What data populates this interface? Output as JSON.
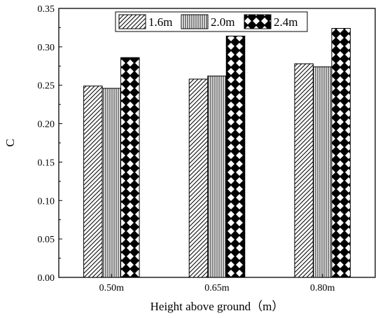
{
  "chart_data": {
    "type": "bar",
    "categories": [
      "0.50m",
      "0.65m",
      "0.80m"
    ],
    "series": [
      {
        "name": "1.6m",
        "values": [
          0.249,
          0.258,
          0.278
        ],
        "pattern": "diagonal-hatch"
      },
      {
        "name": "2.0m",
        "values": [
          0.246,
          0.262,
          0.274
        ],
        "pattern": "vertical-lines"
      },
      {
        "name": "2.4m",
        "values": [
          0.286,
          0.314,
          0.324
        ],
        "pattern": "checker-diamond"
      }
    ],
    "xlabel": "Height above ground（m）",
    "ylabel": "C",
    "ylim": [
      0,
      0.35
    ],
    "yticks": [
      "0.00",
      "0.05",
      "0.10",
      "0.15",
      "0.20",
      "0.25",
      "0.30",
      "0.35"
    ],
    "legend_position": "top-center",
    "grid": false,
    "colors": {
      "bar_fill": "#ffffff",
      "stroke": "#000000"
    }
  }
}
